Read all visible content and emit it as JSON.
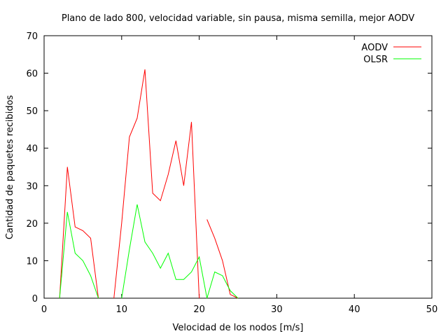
{
  "chart_data": {
    "type": "line",
    "title": "Plano de lado 800, velocidad variable, sin pausa, misma semilla, mejor AODV",
    "xlabel": "Velocidad de los nodos [m/s]",
    "ylabel": "Cantidad de paquetes recibidos",
    "xlim": [
      0,
      50
    ],
    "ylim": [
      0,
      70
    ],
    "xticks": [
      0,
      10,
      20,
      30,
      40,
      50
    ],
    "yticks": [
      0,
      10,
      20,
      30,
      40,
      50,
      60,
      70
    ],
    "grid": false,
    "legend_position": "top-right",
    "series": [
      {
        "name": "AODV",
        "color": "#ff0000",
        "segments": [
          [
            [
              2,
              0
            ],
            [
              3,
              35
            ],
            [
              4,
              19
            ],
            [
              5,
              18
            ],
            [
              6,
              16
            ],
            [
              7,
              0
            ]
          ],
          [
            [
              9,
              0
            ],
            [
              10,
              20
            ],
            [
              11,
              43
            ],
            [
              12,
              48
            ],
            [
              13,
              61
            ],
            [
              14,
              28
            ],
            [
              15,
              26
            ],
            [
              16,
              33
            ],
            [
              17,
              42
            ],
            [
              18,
              30
            ],
            [
              19,
              47
            ],
            [
              20,
              0
            ]
          ],
          [
            [
              21,
              21
            ],
            [
              22,
              16
            ],
            [
              23,
              10
            ],
            [
              24,
              1
            ],
            [
              25,
              0
            ]
          ]
        ]
      },
      {
        "name": "OLSR",
        "color": "#00ff00",
        "segments": [
          [
            [
              2,
              0
            ],
            [
              3,
              23
            ],
            [
              4,
              12
            ],
            [
              5,
              10
            ],
            [
              6,
              6
            ],
            [
              7,
              0
            ]
          ],
          [
            [
              10,
              0
            ],
            [
              11,
              13
            ],
            [
              12,
              25
            ],
            [
              13,
              15
            ],
            [
              14,
              12
            ],
            [
              15,
              8
            ],
            [
              16,
              12
            ],
            [
              17,
              5
            ],
            [
              18,
              5
            ],
            [
              19,
              7
            ],
            [
              20,
              11
            ],
            [
              21,
              0
            ],
            [
              22,
              7
            ],
            [
              23,
              6
            ],
            [
              24,
              2
            ],
            [
              25,
              0
            ]
          ]
        ]
      }
    ]
  }
}
